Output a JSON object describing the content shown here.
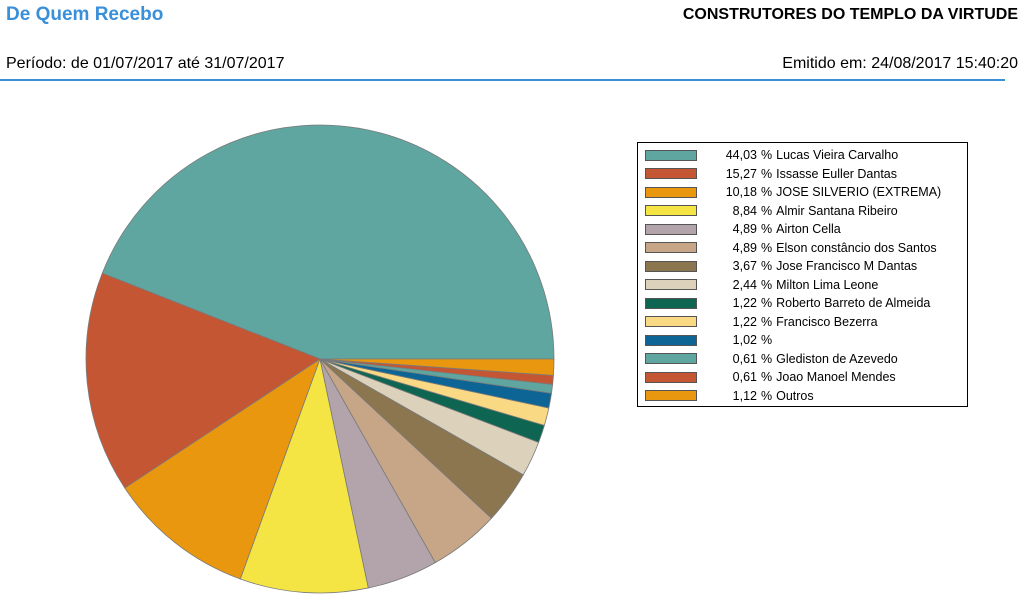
{
  "header": {
    "title": "De Quem Recebo",
    "organization": "CONSTRUTORES DO TEMPLO DA VIRTUDE",
    "period": "Período: de 01/07/2017 até 31/07/2017",
    "issued": "Emitido em: 24/08/2017 15:40:20"
  },
  "chart_data": {
    "type": "pie",
    "title": "",
    "legend_placement": "right",
    "unit_symbol": "%",
    "slices": [
      {
        "value": "44,03",
        "label": "Lucas Vieira Carvalho",
        "pct": 44.03,
        "color": "#5fa6a0"
      },
      {
        "value": "15,27",
        "label": "Issasse Euller Dantas",
        "pct": 15.27,
        "color": "#c55634"
      },
      {
        "value": "10,18",
        "label": "JOSE SILVERIO (EXTREMA)",
        "pct": 10.18,
        "color": "#e8970f"
      },
      {
        "value": "8,84",
        "label": "Almir Santana Ribeiro",
        "pct": 8.84,
        "color": "#f4e545"
      },
      {
        "value": "4,89",
        "label": "Airton Cella",
        "pct": 4.89,
        "color": "#b2a4aa"
      },
      {
        "value": "4,89",
        "label": "Elson constâncio dos Santos",
        "pct": 4.89,
        "color": "#c7a688"
      },
      {
        "value": "3,67",
        "label": "Jose Francisco M Dantas",
        "pct": 3.67,
        "color": "#8b7650"
      },
      {
        "value": "2,44",
        "label": "Milton Lima Leone",
        "pct": 2.44,
        "color": "#dcd2bc"
      },
      {
        "value": "1,22",
        "label": "Roberto Barreto de Almeida",
        "pct": 1.22,
        "color": "#0e6551"
      },
      {
        "value": "1,22",
        "label": "Francisco Bezerra",
        "pct": 1.22,
        "color": "#fad984"
      },
      {
        "value": "1,02",
        "label": "",
        "pct": 1.02,
        "color": "#0d6596"
      },
      {
        "value": "0,61",
        "label": "Glediston de Azevedo",
        "pct": 0.61,
        "color": "#5fa6a0"
      },
      {
        "value": "0,61",
        "label": "Joao Manoel Mendes",
        "pct": 0.61,
        "color": "#c55634"
      },
      {
        "value": "1,12",
        "label": "Outros",
        "pct": 1.12,
        "color": "#e8970f"
      }
    ]
  }
}
